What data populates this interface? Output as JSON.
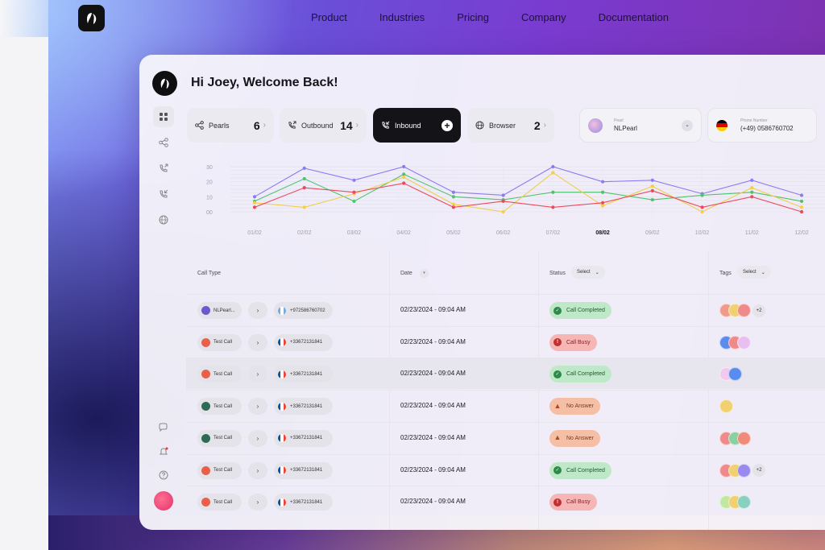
{
  "site": {
    "nav": [
      "Product",
      "Industries",
      "Pricing",
      "Company",
      "Documentation"
    ]
  },
  "app": {
    "greeting": "Hi Joey, Welcome Back!",
    "chips": [
      {
        "label": "Pearls",
        "count": "6",
        "icon": "share-icon"
      },
      {
        "label": "Outbound",
        "count": "14",
        "icon": "phone-outbound-icon"
      },
      {
        "label": "Inbound",
        "icon": "phone-inbound-icon",
        "active": true
      },
      {
        "label": "Browser",
        "count": "2",
        "icon": "globe-icon"
      }
    ],
    "pearl_select": {
      "caption": "Pearl",
      "value": "NLPearl"
    },
    "phone_select": {
      "caption": "Phone Number",
      "value": "(+49) 0586760702"
    }
  },
  "chart_data": {
    "type": "line",
    "x": [
      "01/02",
      "02/02",
      "03/02",
      "04/02",
      "05/02",
      "06/02",
      "07/02",
      "08/02",
      "09/02",
      "10/02",
      "11/02",
      "12/02"
    ],
    "highlight_x": "08/02",
    "ylim": [
      0,
      30
    ],
    "yticks": [
      "30",
      "20",
      "10",
      "00"
    ],
    "grid": true,
    "series": [
      {
        "color": "#8a7cf0",
        "values": [
          10,
          29,
          21,
          30,
          13,
          11,
          30,
          20,
          21,
          12,
          21,
          11
        ]
      },
      {
        "color": "#4cc46a",
        "values": [
          7,
          22,
          7,
          25,
          10,
          8,
          13,
          13,
          8,
          11,
          13,
          7
        ]
      },
      {
        "color": "#f0cf4a",
        "values": [
          6,
          3,
          12,
          23,
          5,
          0,
          26,
          4,
          17,
          0,
          16,
          3
        ]
      },
      {
        "color": "#e94b5b",
        "values": [
          3,
          16,
          13,
          19,
          3,
          7,
          3,
          6,
          14,
          3,
          10,
          0
        ]
      }
    ]
  },
  "table": {
    "headers": {
      "call_type": "Call Type",
      "date": "Date",
      "status": "Status",
      "tags": "Tags"
    },
    "select_label": "Select",
    "rows": [
      {
        "name": "NLPearl...",
        "avatar": "#6a5acd",
        "phone": "+972586760702",
        "flag": [
          "#75aadb",
          "#ffffff",
          "#75aadb"
        ],
        "date": "02/23/2024 - 09:04 AM",
        "status": "Call Completed",
        "status_type": "completed",
        "tags": [
          "#f09a8a",
          "#f0d070",
          "#f08a8a"
        ],
        "more": "+2"
      },
      {
        "name": "Test Call",
        "avatar": "#e8604a",
        "phone": "+33672131841",
        "flag": [
          "#0055a4",
          "#ffffff",
          "#ef4135"
        ],
        "date": "02/23/2024 - 09:04 AM",
        "status": "Call Busy",
        "status_type": "busy",
        "tags": [
          "#5a8cf0",
          "#f08a8a",
          "#e8c0f0"
        ]
      },
      {
        "name": "Test Call",
        "avatar": "#e8604a",
        "phone": "+33672131841",
        "flag": [
          "#0055a4",
          "#ffffff",
          "#ef4135"
        ],
        "date": "02/23/2024 - 09:04 AM",
        "status": "Call Completed",
        "status_type": "completed",
        "tags": [
          "#f0c8f0",
          "#5a8cf0"
        ],
        "highlight": true
      },
      {
        "name": "Test Call",
        "avatar": "#2f6a55",
        "phone": "+33672131841",
        "flag": [
          "#0055a4",
          "#ffffff",
          "#ef4135"
        ],
        "date": "02/23/2024 - 09:04 AM",
        "status": "No Answer",
        "status_type": "noanswer",
        "tags": [
          "#f0d070"
        ]
      },
      {
        "name": "Test Call",
        "avatar": "#2f6a55",
        "phone": "+33672131841",
        "flag": [
          "#0055a4",
          "#ffffff",
          "#ef4135"
        ],
        "date": "02/23/2024 - 09:04 AM",
        "status": "No Answer",
        "status_type": "noanswer",
        "tags": [
          "#f08a8a",
          "#8ad0a0",
          "#f08a7a"
        ]
      },
      {
        "name": "Test Call",
        "avatar": "#e8604a",
        "phone": "+33672131841",
        "flag": [
          "#0055a4",
          "#ffffff",
          "#ef4135"
        ],
        "date": "02/23/2024 - 09:04 AM",
        "status": "Call Completed",
        "status_type": "completed",
        "tags": [
          "#f08a8a",
          "#f0d070",
          "#9a8af0"
        ],
        "more": "+2"
      },
      {
        "name": "Test Call",
        "avatar": "#e8604a",
        "phone": "+33672131841",
        "flag": [
          "#0055a4",
          "#ffffff",
          "#ef4135"
        ],
        "date": "02/23/2024 - 09:04 AM",
        "status": "Call Busy",
        "status_type": "busy",
        "tags": [
          "#c0e8a0",
          "#f0d070",
          "#8ad0c0"
        ]
      }
    ]
  }
}
